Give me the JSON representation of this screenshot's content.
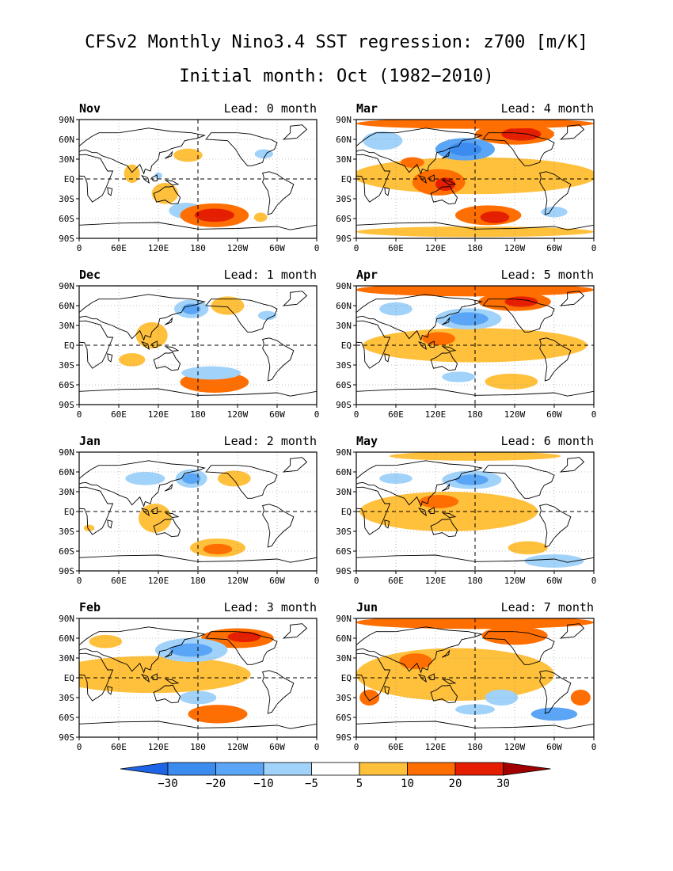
{
  "header": {
    "title": "CFSv2 Monthly Nino3.4 SST regression: z700 [m/K]",
    "subtitle": "Initial month: Oct (1982−2010)"
  },
  "colors": {
    "neg_extreme": "#1e64e6",
    "neg_strong": "#3c8cf0",
    "neg_mid": "#5aa5f5",
    "neg_weak": "#a0d2fa",
    "neutral": "#ffffff",
    "pos_weak": "#ffc03c",
    "pos_mid": "#ff6e00",
    "pos_strong": "#e61e00",
    "pos_extreme": "#a00000"
  },
  "chart_data": {
    "type": "heatmap",
    "title": "CFSv2 Monthly Nino3.4 SST regression: z700 [m/K]",
    "subtitle": "Initial month: Oct (1982−2010)",
    "units": "m/K",
    "x_ticks": [
      "0",
      "60E",
      "120E",
      "180",
      "120W",
      "60W",
      "0"
    ],
    "y_ticks": [
      "90N",
      "60N",
      "30N",
      "EQ",
      "30S",
      "60S",
      "90S"
    ],
    "colorbar": {
      "levels": [
        "−30",
        "−20",
        "−10",
        "−5",
        "5",
        "10",
        "20",
        "30"
      ],
      "colors": [
        "#1e64e6",
        "#3c8cf0",
        "#5aa5f5",
        "#a0d2fa",
        "#ffffff",
        "#ffc03c",
        "#ff6e00",
        "#e61e00",
        "#a00000"
      ]
    },
    "panels": [
      {
        "month": "Nov",
        "lead": "Lead: 0 month",
        "features": [
          {
            "lon": 80,
            "lat": 8,
            "w": 12,
            "h": 14,
            "level": 5
          },
          {
            "lon": 165,
            "lat": 36,
            "w": 22,
            "h": 10,
            "level": 5
          },
          {
            "lon": 130,
            "lat": -22,
            "w": 20,
            "h": 16,
            "level": 5
          },
          {
            "lon": 162,
            "lat": -48,
            "w": 26,
            "h": 12,
            "level": -5
          },
          {
            "lon": 205,
            "lat": -55,
            "w": 52,
            "h": 18,
            "level": 10
          },
          {
            "lon": 205,
            "lat": -55,
            "w": 30,
            "h": 10,
            "level": 20
          },
          {
            "lon": 280,
            "lat": 38,
            "w": 14,
            "h": 7,
            "level": -5
          },
          {
            "lon": 275,
            "lat": -58,
            "w": 10,
            "h": 7,
            "level": 5
          },
          {
            "lon": 120,
            "lat": 5,
            "w": 6,
            "h": 5,
            "level": -5
          }
        ]
      },
      {
        "month": "Mar",
        "lead": "Lead: 4 month",
        "features": [
          {
            "lon": 180,
            "lat": 5,
            "w": 185,
            "h": 28,
            "level": 5
          },
          {
            "lon": 125,
            "lat": -5,
            "w": 40,
            "h": 20,
            "level": 10
          },
          {
            "lon": 135,
            "lat": -8,
            "w": 15,
            "h": 10,
            "level": 20
          },
          {
            "lon": 240,
            "lat": 68,
            "w": 60,
            "h": 16,
            "level": 10
          },
          {
            "lon": 250,
            "lat": 68,
            "w": 30,
            "h": 10,
            "level": 20
          },
          {
            "lon": 165,
            "lat": 45,
            "w": 45,
            "h": 17,
            "level": -10
          },
          {
            "lon": 165,
            "lat": 45,
            "w": 25,
            "h": 10,
            "level": -20
          },
          {
            "lon": 40,
            "lat": 58,
            "w": 30,
            "h": 14,
            "level": -5
          },
          {
            "lon": 200,
            "lat": -55,
            "w": 50,
            "h": 15,
            "level": 10
          },
          {
            "lon": 210,
            "lat": -58,
            "w": 22,
            "h": 9,
            "level": 20
          },
          {
            "lon": 180,
            "lat": 84,
            "w": 180,
            "h": 8,
            "level": 10
          },
          {
            "lon": 85,
            "lat": 25,
            "w": 18,
            "h": 8,
            "level": 10
          },
          {
            "lon": 300,
            "lat": -50,
            "w": 20,
            "h": 8,
            "level": -5
          },
          {
            "lon": 180,
            "lat": -80,
            "w": 180,
            "h": 8,
            "level": 5
          }
        ]
      },
      {
        "month": "Dec",
        "lead": "Lead: 1 month",
        "features": [
          {
            "lon": 170,
            "lat": 55,
            "w": 26,
            "h": 14,
            "level": -5
          },
          {
            "lon": 170,
            "lat": 55,
            "w": 14,
            "h": 8,
            "level": -10
          },
          {
            "lon": 225,
            "lat": 60,
            "w": 25,
            "h": 14,
            "level": 5
          },
          {
            "lon": 110,
            "lat": 15,
            "w": 24,
            "h": 20,
            "level": 5
          },
          {
            "lon": 80,
            "lat": -22,
            "w": 20,
            "h": 10,
            "level": 5
          },
          {
            "lon": 205,
            "lat": -56,
            "w": 52,
            "h": 16,
            "level": 10
          },
          {
            "lon": 200,
            "lat": -42,
            "w": 45,
            "h": 10,
            "level": -5
          },
          {
            "lon": 285,
            "lat": 45,
            "w": 14,
            "h": 7,
            "level": -5
          }
        ]
      },
      {
        "month": "Apr",
        "lead": "Lead: 5 month",
        "features": [
          {
            "lon": 180,
            "lat": 0,
            "w": 170,
            "h": 26,
            "level": 5
          },
          {
            "lon": 125,
            "lat": 10,
            "w": 25,
            "h": 10,
            "level": 10
          },
          {
            "lon": 180,
            "lat": 84,
            "w": 180,
            "h": 10,
            "level": 10
          },
          {
            "lon": 240,
            "lat": 66,
            "w": 55,
            "h": 14,
            "level": 10
          },
          {
            "lon": 250,
            "lat": 66,
            "w": 25,
            "h": 8,
            "level": 20
          },
          {
            "lon": 170,
            "lat": 40,
            "w": 50,
            "h": 16,
            "level": -5
          },
          {
            "lon": 170,
            "lat": 40,
            "w": 30,
            "h": 10,
            "level": -10
          },
          {
            "lon": 60,
            "lat": 55,
            "w": 25,
            "h": 10,
            "level": -5
          },
          {
            "lon": 235,
            "lat": -55,
            "w": 40,
            "h": 12,
            "level": 5
          },
          {
            "lon": 155,
            "lat": -48,
            "w": 25,
            "h": 8,
            "level": -5
          }
        ]
      },
      {
        "month": "Jan",
        "lead": "Lead: 2 month",
        "features": [
          {
            "lon": 170,
            "lat": 50,
            "w": 24,
            "h": 14,
            "level": -5
          },
          {
            "lon": 170,
            "lat": 50,
            "w": 14,
            "h": 8,
            "level": -10
          },
          {
            "lon": 235,
            "lat": 50,
            "w": 25,
            "h": 12,
            "level": 5
          },
          {
            "lon": 115,
            "lat": -10,
            "w": 25,
            "h": 22,
            "level": 5
          },
          {
            "lon": 210,
            "lat": -55,
            "w": 42,
            "h": 14,
            "level": 5
          },
          {
            "lon": 210,
            "lat": -57,
            "w": 22,
            "h": 8,
            "level": 10
          },
          {
            "lon": 100,
            "lat": 50,
            "w": 30,
            "h": 10,
            "level": -5
          },
          {
            "lon": 15,
            "lat": -25,
            "w": 8,
            "h": 5,
            "level": 5
          }
        ]
      },
      {
        "month": "May",
        "lead": "Lead: 6 month",
        "features": [
          {
            "lon": 140,
            "lat": 0,
            "w": 135,
            "h": 30,
            "level": 5
          },
          {
            "lon": 125,
            "lat": 15,
            "w": 30,
            "h": 10,
            "level": 10
          },
          {
            "lon": 175,
            "lat": 48,
            "w": 45,
            "h": 14,
            "level": -5
          },
          {
            "lon": 175,
            "lat": 48,
            "w": 25,
            "h": 8,
            "level": -10
          },
          {
            "lon": 180,
            "lat": 84,
            "w": 130,
            "h": 7,
            "level": 5
          },
          {
            "lon": 260,
            "lat": -55,
            "w": 30,
            "h": 10,
            "level": 5
          },
          {
            "lon": 300,
            "lat": -75,
            "w": 45,
            "h": 10,
            "level": -5
          },
          {
            "lon": 60,
            "lat": 50,
            "w": 25,
            "h": 8,
            "level": -5
          }
        ]
      },
      {
        "month": "Feb",
        "lead": "Lead: 3 month",
        "features": [
          {
            "lon": 110,
            "lat": 5,
            "w": 150,
            "h": 28,
            "level": 5
          },
          {
            "lon": 240,
            "lat": 60,
            "w": 55,
            "h": 15,
            "level": 10
          },
          {
            "lon": 250,
            "lat": 62,
            "w": 25,
            "h": 8,
            "level": 20
          },
          {
            "lon": 170,
            "lat": 42,
            "w": 55,
            "h": 18,
            "level": -5
          },
          {
            "lon": 170,
            "lat": 42,
            "w": 32,
            "h": 10,
            "level": -10
          },
          {
            "lon": 210,
            "lat": -55,
            "w": 45,
            "h": 14,
            "level": 10
          },
          {
            "lon": 180,
            "lat": -30,
            "w": 28,
            "h": 10,
            "level": -5
          },
          {
            "lon": 40,
            "lat": 55,
            "w": 25,
            "h": 10,
            "level": 5
          }
        ]
      },
      {
        "month": "Jun",
        "lead": "Lead: 7 month",
        "features": [
          {
            "lon": 150,
            "lat": 5,
            "w": 150,
            "h": 40,
            "level": 5
          },
          {
            "lon": 90,
            "lat": 25,
            "w": 25,
            "h": 12,
            "level": 10
          },
          {
            "lon": 180,
            "lat": 84,
            "w": 180,
            "h": 10,
            "level": 10
          },
          {
            "lon": 240,
            "lat": 64,
            "w": 50,
            "h": 14,
            "level": 10
          },
          {
            "lon": 220,
            "lat": -30,
            "w": 25,
            "h": 12,
            "level": -5
          },
          {
            "lon": 300,
            "lat": -55,
            "w": 35,
            "h": 10,
            "level": -10
          },
          {
            "lon": 180,
            "lat": -48,
            "w": 30,
            "h": 8,
            "level": -5
          },
          {
            "lon": 20,
            "lat": -30,
            "w": 15,
            "h": 12,
            "level": 10
          },
          {
            "lon": 340,
            "lat": -30,
            "w": 15,
            "h": 12,
            "level": 10
          }
        ]
      }
    ]
  }
}
